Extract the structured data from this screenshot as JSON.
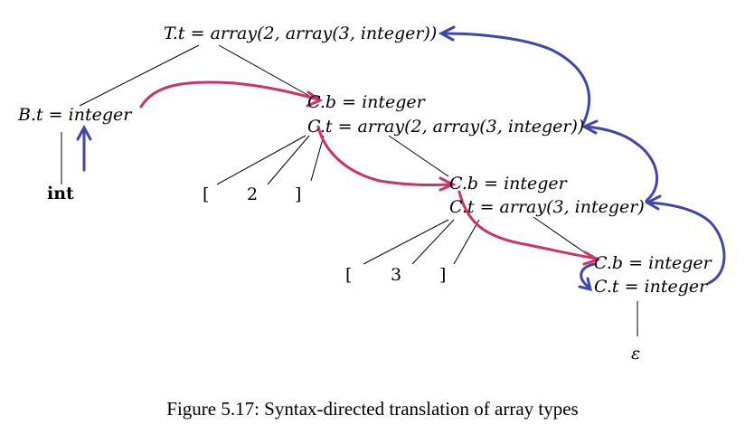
{
  "colors": {
    "red_arrows": "#cc3366",
    "blue_arrows": "#3f47a8",
    "text": "#000000"
  },
  "nodes": {
    "root": {
      "attr": "T.t",
      "eq": " = ",
      "val": "array(2, array(3, integer))"
    },
    "B": {
      "attr": "B.t",
      "eq": " = ",
      "val": "integer"
    },
    "int": {
      "text": "int"
    },
    "C1": {
      "b_attr": "C.b",
      "b_eq": " = ",
      "b_val": "integer",
      "t_attr": "C.t",
      "t_eq": " = ",
      "t_val": "array(2, array(3, integer))",
      "lbracket": "[",
      "num": "2",
      "rbracket": "]"
    },
    "C2": {
      "b_attr": "C.b",
      "b_eq": " = ",
      "b_val": "integer",
      "t_attr": "C.t",
      "t_eq": " = ",
      "t_val": "array(3, integer)",
      "lbracket": "[",
      "num": "3",
      "rbracket": "]"
    },
    "C3": {
      "b_attr": "C.b",
      "b_eq": " = ",
      "b_val": "integer",
      "t_attr": "C.t",
      "t_eq": " = ",
      "t_val": "integer"
    },
    "epsilon": {
      "text": "ε"
    }
  },
  "caption": "Figure 5.17: Syntax-directed translation of array types"
}
